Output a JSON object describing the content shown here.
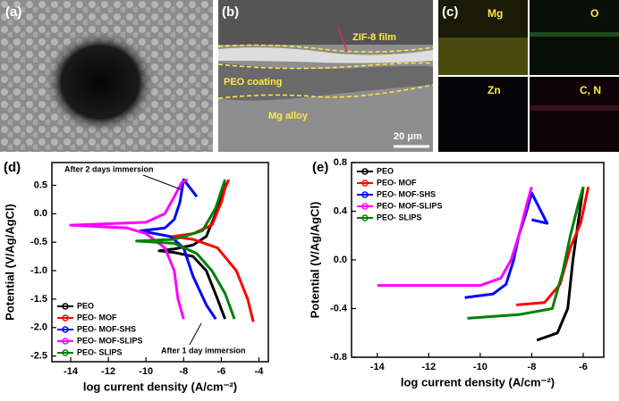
{
  "micrographs": {
    "a": "(a)",
    "b": "(b)",
    "c": "(c)",
    "b_labels": [
      "ZIF-8 film",
      "PEO coating",
      "Mg alloy"
    ],
    "scale_bar": "20 μm",
    "c_labels": [
      "Mg",
      "O",
      "Zn",
      "C, N"
    ]
  },
  "chart_data": [
    {
      "type": "line",
      "panel": "(d)",
      "x_label": "log current density (A/cm⁻²)",
      "y_label": "Potential (V/Ag/AgCl)",
      "xlim": [
        -15,
        -3.5
      ],
      "xticks": [
        -14,
        -12,
        -10,
        -8,
        -6,
        -4
      ],
      "ylim": [
        -2.6,
        0.9
      ],
      "yticks": [
        0.5,
        {
          "value": 0,
          "label": "0.0"
        },
        -0.5,
        {
          "value": -1,
          "label": "-1.0"
        },
        -1.5,
        {
          "value": -2,
          "label": "-2.0"
        },
        -2.5
      ],
      "legend": "lower left",
      "annotations": [
        "After 2 days immersion",
        "After 1 day immersion"
      ],
      "series": [
        {
          "name": "PEO",
          "color": "#000000",
          "x": [
            -5.8,
            -6.2,
            -6.8,
            -7.5,
            -8.5,
            -9.3,
            -8.5,
            -7.5,
            -6.8,
            -6.3,
            -6,
            -5.8
          ],
          "values": [
            -1.85,
            -1.5,
            -1.0,
            -0.75,
            -0.68,
            -0.65,
            -0.62,
            -0.55,
            -0.4,
            0,
            0.3,
            0.55
          ]
        },
        {
          "name": "PEO- MOF",
          "color": "#ff0000",
          "x": [
            -4.3,
            -4.6,
            -5.2,
            -6.2,
            -7.5,
            -8.6,
            -7.5,
            -6.5,
            -6,
            -5.8,
            -5.6
          ],
          "values": [
            -1.9,
            -1.5,
            -1.0,
            -0.6,
            -0.45,
            -0.4,
            -0.35,
            -0.2,
            0.2,
            0.45,
            0.6
          ]
        },
        {
          "name": "PEO- MOF-SHS",
          "color": "#0000ff",
          "x": [
            -6.3,
            -6.8,
            -7.5,
            -8,
            -8.7,
            -10.3,
            -9,
            -8.5,
            -8.2,
            -8,
            -7.3
          ],
          "values": [
            -1.85,
            -1.6,
            -1.1,
            -0.6,
            -0.4,
            -0.3,
            -0.25,
            -0.1,
            0.2,
            0.6,
            0.3
          ]
        },
        {
          "name": "PEO- MOF-SLIPS",
          "color": "#ff00ff",
          "x": [
            -8,
            -8.3,
            -8.5,
            -9,
            -10,
            -11,
            -14,
            -10,
            -9,
            -8.5,
            -8.1,
            -7.8
          ],
          "values": [
            -1.85,
            -1.5,
            -1.0,
            -0.6,
            -0.35,
            -0.25,
            -0.2,
            -0.15,
            0,
            0.3,
            0.55,
            0.6
          ]
        },
        {
          "name": "PEO- SLIPS",
          "color": "#008000",
          "x": [
            -5.3,
            -5.8,
            -6.5,
            -7.3,
            -8.5,
            -10.5,
            -8.5,
            -7,
            -6.3,
            -6,
            -5.8
          ],
          "values": [
            -1.85,
            -1.4,
            -1.0,
            -0.7,
            -0.52,
            -0.48,
            -0.45,
            -0.3,
            0.1,
            0.4,
            0.6
          ]
        }
      ]
    },
    {
      "type": "line",
      "panel": "(e)",
      "x_label": "log current density (A/cm⁻²)",
      "y_label": "Potential (V/Ag/AgCl)",
      "xlim": [
        -15,
        -5.2
      ],
      "xticks": [
        -14,
        -12,
        -10,
        -8,
        -6
      ],
      "ylim": [
        -0.8,
        0.8
      ],
      "yticks": [
        0.8,
        0.4,
        {
          "value": 0,
          "label": "0.0"
        },
        -0.4,
        -0.8
      ],
      "legend": "upper left",
      "series": [
        {
          "name": "PEO",
          "color": "#000000",
          "x": [
            -7.8,
            -7,
            -6.6,
            -6.4,
            -6.2,
            -6
          ],
          "values": [
            -0.66,
            -0.6,
            -0.4,
            0,
            0.3,
            0.6
          ]
        },
        {
          "name": "PEO- MOF",
          "color": "#ff0000",
          "x": [
            -8.6,
            -7.5,
            -6.9,
            -6.5,
            -6.1,
            -5.8
          ],
          "values": [
            -0.37,
            -0.35,
            -0.2,
            0.1,
            0.3,
            0.6
          ]
        },
        {
          "name": "PEO- MOF-SHS",
          "color": "#0000ff",
          "x": [
            -10.6,
            -9.5,
            -9,
            -8.7,
            -8.5,
            -8.2,
            -8,
            -7.4,
            -8
          ],
          "values": [
            -0.31,
            -0.28,
            -0.2,
            0,
            0.2,
            0.4,
            0.55,
            0.3,
            0.33
          ]
        },
        {
          "name": "PEO- MOF-SLIPS",
          "color": "#ff00ff",
          "x": [
            -14,
            -10,
            -9.2,
            -8.8,
            -8.5,
            -8.2,
            -8
          ],
          "values": [
            -0.21,
            -0.21,
            -0.15,
            0,
            0.2,
            0.45,
            0.6
          ]
        },
        {
          "name": "PEO- SLIPS",
          "color": "#008000",
          "x": [
            -10.5,
            -8.5,
            -7.2,
            -6.8,
            -6.5,
            -6.2,
            -6
          ],
          "values": [
            -0.48,
            -0.45,
            -0.4,
            -0.1,
            0.2,
            0.45,
            0.6
          ]
        }
      ]
    }
  ]
}
